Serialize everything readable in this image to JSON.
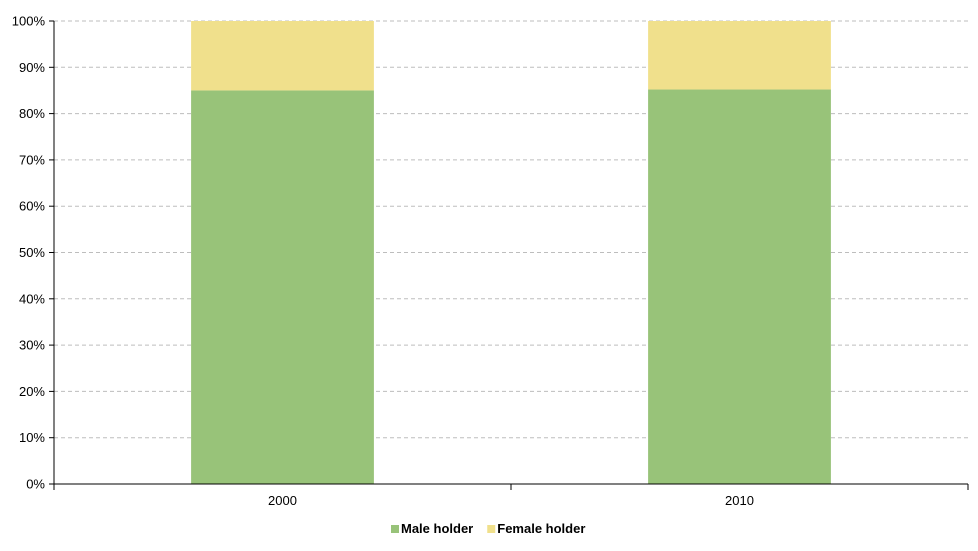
{
  "chart_data": {
    "type": "bar",
    "stacked": true,
    "categories": [
      "2000",
      "2010"
    ],
    "series": [
      {
        "name": "Male holder",
        "values": [
          85,
          85.2
        ],
        "color": "#98c379"
      },
      {
        "name": "Female holder",
        "values": [
          15,
          14.8
        ],
        "color": "#f0e08c"
      }
    ],
    "y_ticks": [
      "0%",
      "10%",
      "20%",
      "30%",
      "40%",
      "50%",
      "60%",
      "70%",
      "80%",
      "90%",
      "100%"
    ],
    "ylim": [
      0,
      100
    ],
    "grid": true,
    "legend_position": "bottom",
    "title": "",
    "xlabel": "",
    "ylabel": ""
  }
}
